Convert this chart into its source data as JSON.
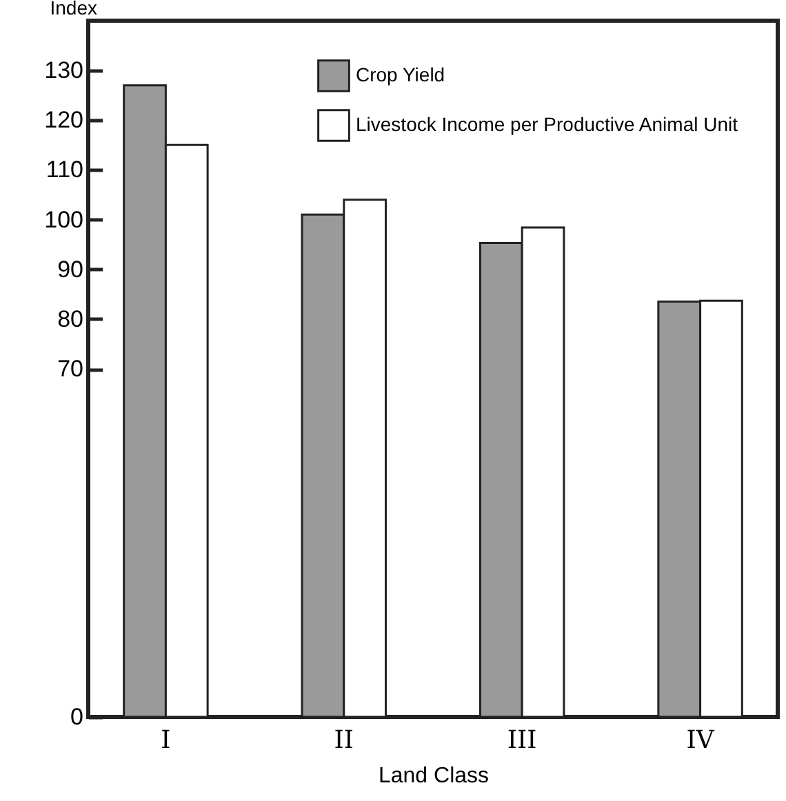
{
  "chart_data": {
    "type": "bar",
    "xlabel": "Land Class",
    "ylabel": "Index",
    "categories": [
      "I",
      "II",
      "III",
      "IV"
    ],
    "series": [
      {
        "name": "Crop Yield",
        "color": "#9a9a9a",
        "values": [
          127,
          101,
          95.3,
          83.5
        ]
      },
      {
        "name": "Livestock Income per Productive Animal Unit",
        "color": "#ffffff",
        "values": [
          115,
          104,
          98.4,
          83.7
        ]
      }
    ],
    "ylim": [
      0,
      140
    ],
    "yticks": [
      0,
      70,
      80,
      90,
      100,
      110,
      120,
      130
    ],
    "grid": false,
    "legend": "top right"
  }
}
